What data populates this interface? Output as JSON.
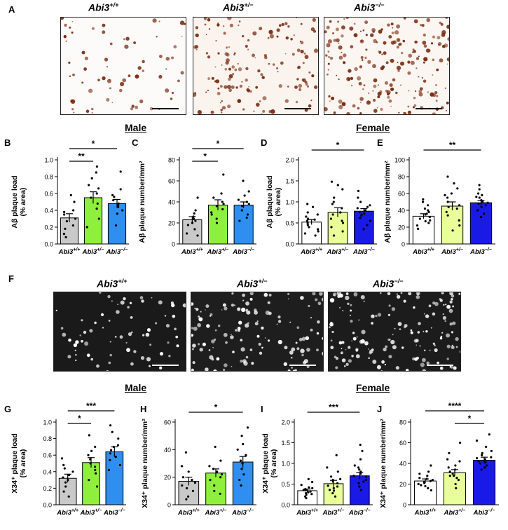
{
  "panels": {
    "A": "A",
    "B": "B",
    "C": "C",
    "D": "D",
    "E": "E",
    "F": "F",
    "G": "G",
    "H": "H",
    "I": "I",
    "J": "J"
  },
  "genotypes": [
    {
      "base": "Abi3",
      "sup": "+/+"
    },
    {
      "base": "Abi3",
      "sup": "+/−"
    },
    {
      "base": "Abi3",
      "sup": "−/−"
    }
  ],
  "sections": {
    "male": "Male",
    "female": "Female"
  },
  "colors": {
    "wt_fill": "#c9c9c9",
    "het_fill": "#8ef03c",
    "ko_male_fill": "#2f8ff0",
    "ko_female_fill": "#1a1ae6",
    "female_wt_fill": "#ffffff",
    "female_het_fill": "#e8ff9a",
    "stain_brown": "#7a2a10",
    "fluor_bg": "#1a1a1a"
  },
  "chart_data": [
    {
      "id": "B",
      "type": "bar",
      "ylabel_lines": [
        "Aβ plaque load",
        "(% area)"
      ],
      "ylim": [
        0,
        1.0
      ],
      "yticks": [
        "0.0",
        "0.2",
        "0.4",
        "0.6",
        "0.8",
        "1.0"
      ],
      "categories": [
        "Abi3+/+",
        "Abi3+/−",
        "Abi3−/−"
      ],
      "values": [
        0.31,
        0.55,
        0.48
      ],
      "errors": [
        0.05,
        0.07,
        0.05
      ],
      "fills": [
        "#c9c9c9",
        "#8ef03c",
        "#2f8ff0"
      ],
      "points": [
        [
          0.58,
          0.5,
          0.38,
          0.35,
          0.3,
          0.27,
          0.22,
          0.18,
          0.12,
          0.08,
          0.4
        ],
        [
          0.92,
          0.85,
          0.78,
          0.66,
          0.6,
          0.55,
          0.48,
          0.42,
          0.3,
          0.2,
          0.7
        ],
        [
          0.86,
          0.65,
          0.56,
          0.52,
          0.48,
          0.46,
          0.44,
          0.4,
          0.36,
          0.22,
          0.58
        ]
      ],
      "significance": [
        {
          "from": 0,
          "to": 1,
          "label": "**"
        },
        {
          "from": 0,
          "to": 2,
          "label": "*"
        }
      ]
    },
    {
      "id": "C",
      "type": "bar",
      "ylabel_lines": [
        "Aβ plaque number/mm²"
      ],
      "ylim": [
        0,
        80
      ],
      "yticks": [
        "0",
        "20",
        "40",
        "60",
        "80"
      ],
      "categories": [
        "Abi3+/+",
        "Abi3+/−",
        "Abi3−/−"
      ],
      "values": [
        23,
        37,
        37
      ],
      "errors": [
        3,
        5,
        3
      ],
      "fills": [
        "#c9c9c9",
        "#8ef03c",
        "#2f8ff0"
      ],
      "points": [
        [
          44,
          32,
          29,
          26,
          24,
          22,
          20,
          18,
          14,
          10,
          8
        ],
        [
          66,
          48,
          44,
          40,
          38,
          36,
          33,
          30,
          28,
          24,
          20
        ],
        [
          60,
          50,
          46,
          42,
          40,
          38,
          36,
          32,
          28,
          25,
          22
        ]
      ],
      "significance": [
        {
          "from": 0,
          "to": 1,
          "label": "*"
        },
        {
          "from": 0,
          "to": 2,
          "label": "*"
        }
      ]
    },
    {
      "id": "D",
      "type": "bar",
      "ylabel_lines": [
        "Aβ plaque load",
        "(% area)"
      ],
      "ylim": [
        0,
        2.0
      ],
      "yticks": [
        "0.0",
        "0.5",
        "1.0",
        "1.5",
        "2.0"
      ],
      "categories": [
        "Abi3+/+",
        "Abi3+/−",
        "Abi3−/−"
      ],
      "values": [
        0.52,
        0.75,
        0.78
      ],
      "errors": [
        0.06,
        0.11,
        0.06
      ],
      "fills": [
        "#ffffff",
        "#e8ff9a",
        "#1a1ae6"
      ],
      "points": [
        [
          0.95,
          0.88,
          0.75,
          0.65,
          0.6,
          0.55,
          0.5,
          0.45,
          0.4,
          0.35,
          0.3,
          0.25,
          0.2,
          0.7,
          0.58
        ],
        [
          1.48,
          1.4,
          1.3,
          1.1,
          0.95,
          0.85,
          0.75,
          0.7,
          0.6,
          0.5,
          0.4,
          0.3,
          0.2,
          1.0,
          0.55
        ],
        [
          1.26,
          1.1,
          1.0,
          0.92,
          0.85,
          0.8,
          0.76,
          0.72,
          0.68,
          0.62,
          0.55,
          0.45,
          0.35,
          0.88,
          0.7
        ]
      ],
      "significance": [
        {
          "from": 0,
          "to": 2,
          "label": "*"
        }
      ]
    },
    {
      "id": "E",
      "type": "bar",
      "ylabel_lines": [
        "Aβ plaque number/mm²"
      ],
      "ylim": [
        0,
        100
      ],
      "yticks": [
        "0",
        "20",
        "40",
        "60",
        "80",
        "100"
      ],
      "categories": [
        "Abi3+/+",
        "Abi3+/−",
        "Abi3−/−"
      ],
      "values": [
        33,
        45,
        49
      ],
      "errors": [
        3,
        5,
        3
      ],
      "fills": [
        "#ffffff",
        "#e8ff9a",
        "#1a1ae6"
      ],
      "points": [
        [
          53,
          50,
          46,
          42,
          38,
          35,
          32,
          30,
          28,
          25,
          22,
          18,
          40,
          36,
          27
        ],
        [
          80,
          72,
          66,
          60,
          55,
          50,
          46,
          42,
          38,
          34,
          28,
          22,
          16,
          58,
          44
        ],
        [
          70,
          65,
          60,
          56,
          52,
          50,
          48,
          46,
          44,
          40,
          36,
          32,
          55,
          58,
          49
        ]
      ],
      "significance": [
        {
          "from": 0,
          "to": 2,
          "label": "**"
        }
      ]
    },
    {
      "id": "G",
      "type": "bar",
      "ylabel_lines": [
        "X34⁺ plaque load",
        "(% area)"
      ],
      "ylim": [
        0,
        1.0
      ],
      "yticks": [
        "0.0",
        "0.2",
        "0.4",
        "0.6",
        "0.8",
        "1.0"
      ],
      "categories": [
        "Abi3+/+",
        "Abi3+/−",
        "Abi3−/−"
      ],
      "values": [
        0.32,
        0.51,
        0.64
      ],
      "errors": [
        0.05,
        0.06,
        0.06
      ],
      "fills": [
        "#c9c9c9",
        "#8ef03c",
        "#2f8ff0"
      ],
      "points": [
        [
          0.56,
          0.48,
          0.4,
          0.36,
          0.33,
          0.3,
          0.27,
          0.22,
          0.16,
          0.1,
          0.44
        ],
        [
          0.84,
          0.7,
          0.6,
          0.55,
          0.5,
          0.46,
          0.42,
          0.38,
          0.3,
          0.22,
          0.65
        ],
        [
          0.96,
          0.88,
          0.8,
          0.72,
          0.66,
          0.62,
          0.58,
          0.54,
          0.48,
          0.42,
          0.7
        ]
      ],
      "significance": [
        {
          "from": 0,
          "to": 1,
          "label": "*"
        },
        {
          "from": 0,
          "to": 2,
          "label": "***"
        }
      ]
    },
    {
      "id": "H",
      "type": "bar",
      "ylabel_lines": [
        "X34⁺ plaque number/mm²"
      ],
      "ylim": [
        0,
        60
      ],
      "yticks": [
        "0",
        "20",
        "40",
        "60"
      ],
      "categories": [
        "Abi3+/+",
        "Abi3+/−",
        "Abi3−/−"
      ],
      "values": [
        17,
        23,
        31
      ],
      "errors": [
        3,
        3,
        4
      ],
      "fills": [
        "#c9c9c9",
        "#8ef03c",
        "#2f8ff0"
      ],
      "points": [
        [
          38,
          28,
          24,
          20,
          18,
          16,
          14,
          12,
          10,
          6,
          4
        ],
        [
          42,
          32,
          28,
          26,
          24,
          22,
          20,
          18,
          14,
          10,
          8
        ],
        [
          56,
          50,
          40,
          36,
          32,
          30,
          26,
          22,
          18,
          14,
          44
        ]
      ],
      "significance": [
        {
          "from": 0,
          "to": 2,
          "label": "*"
        }
      ]
    },
    {
      "id": "I",
      "type": "bar",
      "ylabel_lines": [
        "X34⁺ plaque load",
        "(% area)"
      ],
      "ylim": [
        0,
        2.0
      ],
      "yticks": [
        "0.0",
        "0.5",
        "1.0",
        "1.5",
        "2.0"
      ],
      "categories": [
        "Abi3+/+",
        "Abi3+/−",
        "Abi3−/−"
      ],
      "values": [
        0.34,
        0.51,
        0.7
      ],
      "errors": [
        0.04,
        0.08,
        0.08
      ],
      "fills": [
        "#ffffff",
        "#e8ff9a",
        "#1a1ae6"
      ],
      "points": [
        [
          0.62,
          0.55,
          0.48,
          0.42,
          0.38,
          0.35,
          0.32,
          0.28,
          0.24,
          0.2,
          0.16,
          0.3,
          0.4,
          0.26,
          0.36
        ],
        [
          1.2,
          0.9,
          0.8,
          0.68,
          0.6,
          0.52,
          0.46,
          0.4,
          0.34,
          0.28,
          0.2,
          0.56,
          0.44,
          0.36,
          0.62
        ],
        [
          1.45,
          1.3,
          1.1,
          0.95,
          0.85,
          0.75,
          0.68,
          0.6,
          0.52,
          0.44,
          0.36,
          0.8,
          0.7,
          0.56,
          0.9
        ]
      ],
      "significance": [
        {
          "from": 0,
          "to": 2,
          "label": "***"
        }
      ]
    },
    {
      "id": "J",
      "type": "bar",
      "ylabel_lines": [
        "X34⁺ plaque number/mm²"
      ],
      "ylim": [
        0,
        80
      ],
      "yticks": [
        "0",
        "20",
        "40",
        "60",
        "80"
      ],
      "categories": [
        "Abi3+/+",
        "Abi3+/−",
        "Abi3−/−"
      ],
      "values": [
        23,
        31,
        43
      ],
      "errors": [
        2,
        3,
        3
      ],
      "fills": [
        "#ffffff",
        "#e8ff9a",
        "#1a1ae6"
      ],
      "points": [
        [
          38,
          32,
          28,
          26,
          24,
          23,
          22,
          21,
          20,
          19,
          18,
          16,
          14,
          25,
          30
        ],
        [
          60,
          50,
          42,
          38,
          34,
          32,
          30,
          28,
          26,
          24,
          20,
          16,
          36,
          44,
          28
        ],
        [
          68,
          62,
          56,
          50,
          46,
          44,
          42,
          40,
          38,
          36,
          34,
          48,
          52,
          41,
          45
        ]
      ],
      "significance": [
        {
          "from": 0,
          "to": 2,
          "label": "****"
        },
        {
          "from": 1,
          "to": 2,
          "label": "*"
        }
      ]
    }
  ]
}
